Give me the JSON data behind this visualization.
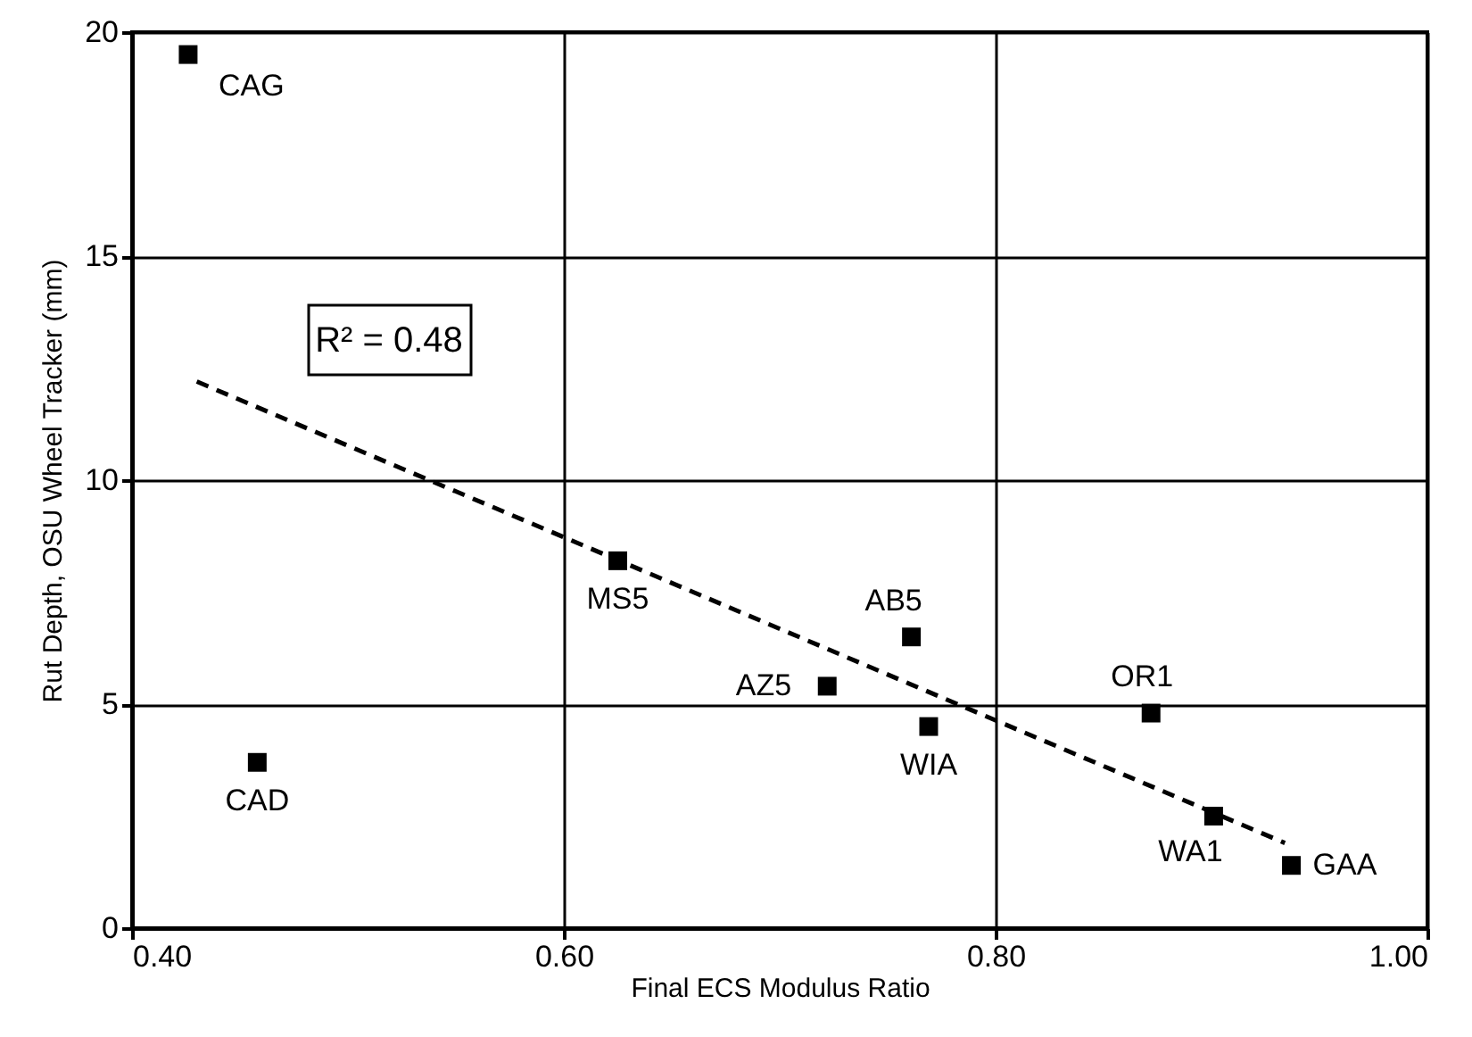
{
  "chart_data": {
    "type": "scatter",
    "xlabel": "Final ECS Modulus Ratio",
    "ylabel": "Rut Depth, OSU Wheel Tracker (mm)",
    "xlim": [
      0.4,
      1.0
    ],
    "xticks": [
      {
        "value": 0.4,
        "label": "0.40"
      },
      {
        "value": 0.6,
        "label": "0.60"
      },
      {
        "value": 0.8,
        "label": "0.80"
      },
      {
        "value": 1.0,
        "label": "1.00"
      }
    ],
    "ylim": [
      0,
      20
    ],
    "yticks": [
      0,
      5,
      10,
      15,
      20
    ],
    "grid": true,
    "series": [
      {
        "color": "#000000",
        "marker": "square",
        "x": [
          0.426,
          0.458,
          0.625,
          0.722,
          0.761,
          0.769,
          0.872,
          0.901,
          0.937
        ],
        "values": [
          19.5,
          3.7,
          8.2,
          5.4,
          6.5,
          4.5,
          4.8,
          2.5,
          1.4
        ]
      },
      {
        "type": "line",
        "color": "#000000",
        "line_style": "dashed",
        "x": [
          0.43,
          0.934
        ],
        "values": [
          12.2,
          1.9
        ]
      }
    ],
    "annotations": [
      {
        "text": "CAG",
        "x": 0.426,
        "y": 19.5
      },
      {
        "text": "CAD",
        "x": 0.458,
        "y": 3.7
      },
      {
        "text": "MS5",
        "x": 0.625,
        "y": 8.2
      },
      {
        "text": "AZ5",
        "x": 0.722,
        "y": 5.4
      },
      {
        "text": "AB5",
        "x": 0.761,
        "y": 6.5
      },
      {
        "text": "WIA",
        "x": 0.769,
        "y": 4.5
      },
      {
        "text": "OR1",
        "x": 0.872,
        "y": 4.8
      },
      {
        "text": "WA1",
        "x": 0.901,
        "y": 2.5
      },
      {
        "text": "GAA",
        "x": 0.937,
        "y": 1.4
      },
      "R² = 0.48"
    ]
  }
}
